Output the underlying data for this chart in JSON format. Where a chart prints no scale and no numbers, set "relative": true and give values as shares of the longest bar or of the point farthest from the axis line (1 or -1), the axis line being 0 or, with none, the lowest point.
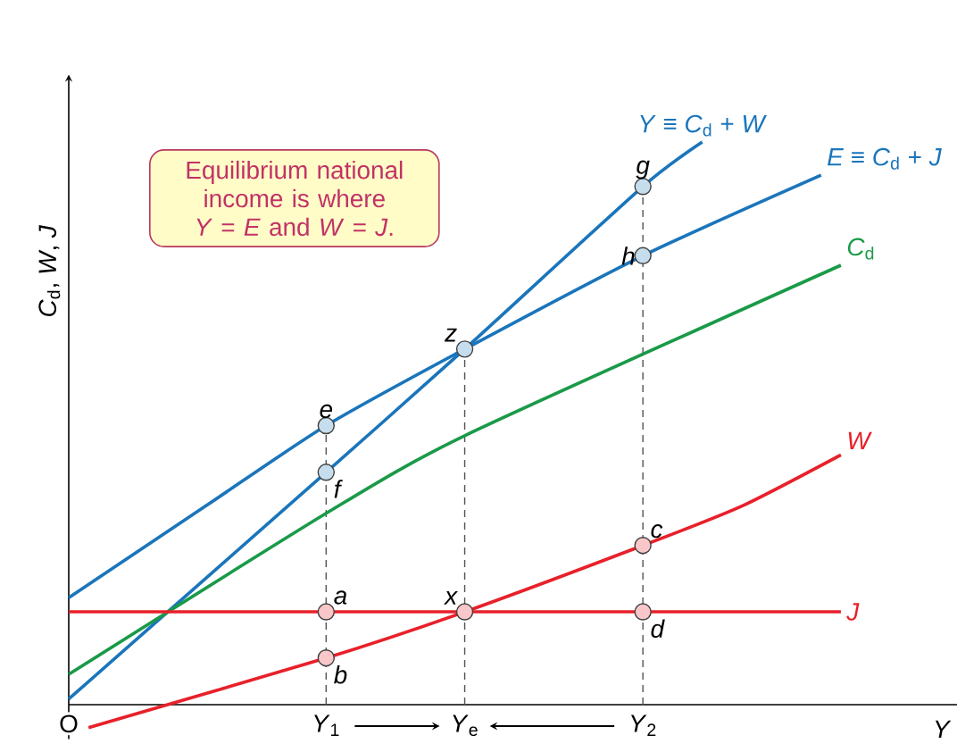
{
  "chart_data": {
    "type": "line",
    "relative": true,
    "ylabel": "*C*$_{d}$, *W*, *J*",
    "xlabel": "*Y*",
    "categories": [
      "O",
      null,
      null,
      null,
      null,
      null,
      null,
      null,
      null,
      null,
      null,
      null,
      null,
      "*Y*$_{1}$",
      null,
      null,
      null,
      null,
      null,
      null,
      "*Y*$_{e}$",
      null,
      null,
      null,
      null,
      null,
      null,
      null,
      null,
      "*Y*$_{2}$",
      null,
      null,
      null,
      null,
      null,
      null,
      null,
      null,
      null,
      null,
      null,
      null,
      null,
      null,
      null,
      null
    ],
    "series": [
      {
        "name": "*Y* ≡ *C*$_{d}$ + *W*",
        "color": "#1a75bb",
        "values": [
          0.01,
          null,
          null,
          null,
          null,
          null,
          null,
          null,
          null,
          null,
          null,
          null,
          null,
          0.413,
          null,
          null,
          null,
          null,
          null,
          null,
          0.632,
          null,
          null,
          null,
          null,
          null,
          null,
          null,
          null,
          0.921,
          null,
          null,
          1,
          null,
          null,
          null,
          null,
          null,
          null,
          null,
          null,
          null,
          null,
          null,
          null,
          null
        ]
      },
      {
        "name": "*E* ≡ *C*$_{d}$ + *J*",
        "color": "#1a75bb",
        "values": [
          0.19,
          null,
          null,
          null,
          null,
          null,
          null,
          0.355,
          null,
          null,
          null,
          null,
          null,
          0.496,
          null,
          null,
          null,
          null,
          null,
          null,
          0.632,
          null,
          null,
          null,
          null,
          null,
          null,
          null,
          null,
          0.798,
          null,
          null,
          null,
          null,
          null,
          null,
          null,
          null,
          0.941,
          null,
          null,
          null,
          null,
          null,
          null,
          null
        ]
      },
      {
        "name": "*C*$_{d}$",
        "color": "#1a9a48",
        "values": [
          0.054,
          null,
          null,
          null,
          null,
          null,
          null,
          null,
          null,
          null,
          null,
          null,
          null,
          0.34,
          null,
          null,
          null,
          null,
          null,
          null,
          0.478,
          null,
          null,
          null,
          null,
          null,
          null,
          null,
          null,
          null,
          null,
          null,
          null,
          null,
          null,
          null,
          null,
          null,
          null,
          0.781,
          null,
          null,
          null,
          null,
          null,
          null
        ]
      },
      {
        "name": "*W*",
        "color": "#e8202a",
        "values": [
          null,
          -0.041,
          null,
          null,
          null,
          null,
          null,
          null,
          null,
          null,
          null,
          null,
          null,
          0.083,
          null,
          null,
          null,
          null,
          null,
          null,
          0.165,
          null,
          null,
          null,
          null,
          null,
          null,
          null,
          null,
          0.283,
          null,
          null,
          null,
          null,
          0.353,
          null,
          null,
          null,
          null,
          0.444,
          null,
          null,
          null,
          null,
          null,
          null
        ]
      },
      {
        "name": "*J*",
        "color": "#e8202a",
        "values": [
          0.165,
          null,
          null,
          null,
          null,
          null,
          null,
          null,
          null,
          null,
          null,
          null,
          null,
          0.165,
          null,
          null,
          null,
          null,
          null,
          null,
          0.165,
          null,
          null,
          null,
          null,
          null,
          null,
          null,
          null,
          0.165,
          null,
          null,
          null,
          null,
          null,
          null,
          null,
          null,
          null,
          0.165,
          null,
          null,
          null,
          null,
          null,
          null
        ]
      }
    ],
    "ref_lines": [
      {
        "axis": "x",
        "value": "*Y*$_{1}$",
        "line_style": "dashed",
        "color": "#555555"
      },
      {
        "axis": "x",
        "value": "*Y*$_{e}$",
        "line_style": "dashed",
        "color": "#555555"
      },
      {
        "axis": "x",
        "value": "*Y*$_{2}$",
        "line_style": "dashed",
        "color": "#555555"
      }
    ],
    "annotations": [
      "Equilibrium national income is where *Y* = *E* and *W* = *J*.",
      {
        "text": "e",
        "x": "*Y*$_{1}$",
        "y": 0.496
      },
      {
        "text": "f",
        "x": "*Y*$_{1}$",
        "y": 0.413
      },
      {
        "text": "g",
        "x": "*Y*$_{2}$",
        "y": 0.921
      },
      {
        "text": "h",
        "x": "*Y*$_{2}$",
        "y": 0.798
      },
      {
        "text": "z",
        "x": "*Y*$_{e}$",
        "y": 0.632
      },
      {
        "text": "a",
        "x": "*Y*$_{1}$",
        "y": 0.165
      },
      {
        "text": "b",
        "x": "*Y*$_{1}$",
        "y": 0.083
      },
      {
        "text": "c",
        "x": "*Y*$_{2}$",
        "y": 0.283
      },
      {
        "text": "d",
        "x": "*Y*$_{2}$",
        "y": 0.165
      },
      {
        "text": "x",
        "x": "*Y*$_{e}$",
        "y": 0.165
      }
    ]
  }
}
